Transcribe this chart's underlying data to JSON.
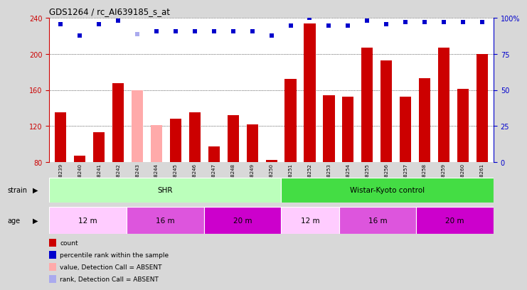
{
  "title": "GDS1264 / rc_AI639185_s_at",
  "samples": [
    "GSM38239",
    "GSM38240",
    "GSM38241",
    "GSM38242",
    "GSM38243",
    "GSM38244",
    "GSM38245",
    "GSM38246",
    "GSM38247",
    "GSM38248",
    "GSM38249",
    "GSM38250",
    "GSM38251",
    "GSM38252",
    "GSM38253",
    "GSM38254",
    "GSM38255",
    "GSM38256",
    "GSM38257",
    "GSM38258",
    "GSM38259",
    "GSM38260",
    "GSM38261"
  ],
  "count_values": [
    135,
    87,
    113,
    168,
    160,
    121,
    128,
    135,
    97,
    132,
    122,
    82,
    172,
    234,
    154,
    153,
    207,
    193,
    153,
    173,
    207,
    161,
    200
  ],
  "count_colors": [
    "#cc0000",
    "#cc0000",
    "#cc0000",
    "#cc0000",
    "#ffaaaa",
    "#ffaaaa",
    "#cc0000",
    "#cc0000",
    "#cc0000",
    "#cc0000",
    "#cc0000",
    "#cc0000",
    "#cc0000",
    "#cc0000",
    "#cc0000",
    "#cc0000",
    "#cc0000",
    "#cc0000",
    "#cc0000",
    "#cc0000",
    "#cc0000",
    "#cc0000",
    "#cc0000"
  ],
  "percentile_values": [
    96,
    88,
    96,
    98,
    89,
    91,
    91,
    91,
    91,
    91,
    91,
    88,
    95,
    100,
    95,
    95,
    98,
    96,
    97,
    97,
    97,
    97,
    97
  ],
  "percentile_colors": [
    "#0000cc",
    "#0000cc",
    "#0000cc",
    "#0000cc",
    "#aaaaee",
    "#0000cc",
    "#0000cc",
    "#0000cc",
    "#0000cc",
    "#0000cc",
    "#0000cc",
    "#0000cc",
    "#0000cc",
    "#0000cc",
    "#0000cc",
    "#0000cc",
    "#0000cc",
    "#0000cc",
    "#0000cc",
    "#0000cc",
    "#0000cc",
    "#0000cc",
    "#0000cc"
  ],
  "ylim_left": [
    80,
    240
  ],
  "ylim_right": [
    0,
    100
  ],
  "yticks_left": [
    80,
    120,
    160,
    200,
    240
  ],
  "yticks_right": [
    0,
    25,
    50,
    75,
    100
  ],
  "ytick_labels_right": [
    "0",
    "25",
    "50",
    "75",
    "100%"
  ],
  "left_axis_color": "#cc0000",
  "right_axis_color": "#0000cc",
  "bg_color": "#d8d8d8",
  "plot_bg_color": "#ffffff",
  "strain_labels": [
    "SHR",
    "Wistar-Kyoto control"
  ],
  "strain_colors": [
    "#bbffbb",
    "#44dd44"
  ],
  "strain_n": [
    12,
    11
  ],
  "age_labels": [
    "12 m",
    "16 m",
    "20 m",
    "12 m",
    "16 m",
    "20 m"
  ],
  "age_ranges": [
    [
      0,
      4
    ],
    [
      4,
      8
    ],
    [
      8,
      12
    ],
    [
      12,
      15
    ],
    [
      15,
      19
    ],
    [
      19,
      23
    ]
  ],
  "age_colors": [
    "#ffccff",
    "#dd55dd",
    "#cc00cc",
    "#ffccff",
    "#dd55dd",
    "#cc00cc"
  ],
  "legend_items": [
    {
      "label": "count",
      "color": "#cc0000"
    },
    {
      "label": "percentile rank within the sample",
      "color": "#0000cc"
    },
    {
      "label": "value, Detection Call = ABSENT",
      "color": "#ffaaaa"
    },
    {
      "label": "rank, Detection Call = ABSENT",
      "color": "#aaaaee"
    }
  ]
}
